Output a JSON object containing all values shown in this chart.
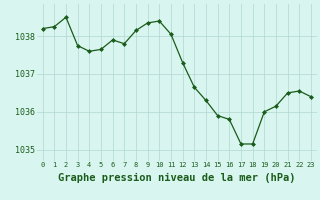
{
  "x": [
    0,
    1,
    2,
    3,
    4,
    5,
    6,
    7,
    8,
    9,
    10,
    11,
    12,
    13,
    14,
    15,
    16,
    17,
    18,
    19,
    20,
    21,
    22,
    23
  ],
  "y": [
    1038.2,
    1038.25,
    1038.5,
    1037.75,
    1037.6,
    1037.65,
    1037.9,
    1037.8,
    1038.15,
    1038.35,
    1038.4,
    1038.05,
    1037.3,
    1036.65,
    1036.3,
    1035.9,
    1035.8,
    1035.15,
    1035.15,
    1036.0,
    1036.15,
    1036.5,
    1036.55,
    1036.4
  ],
  "line_color": "#1a5c1a",
  "marker": "D",
  "marker_size": 2.0,
  "bg_color": "#d8f5f0",
  "grid_color": "#b0d8d0",
  "xlabel": "Graphe pression niveau de la mer (hPa)",
  "tick_color": "#1a5c1a",
  "yticks": [
    1035,
    1036,
    1037,
    1038
  ],
  "ylim": [
    1034.7,
    1038.85
  ],
  "xlim": [
    -0.5,
    23.5
  ],
  "xticks": [
    0,
    1,
    2,
    3,
    4,
    5,
    6,
    7,
    8,
    9,
    10,
    11,
    12,
    13,
    14,
    15,
    16,
    17,
    18,
    19,
    20,
    21,
    22,
    23
  ],
  "xtick_labels": [
    "0",
    "1",
    "2",
    "3",
    "4",
    "5",
    "6",
    "7",
    "8",
    "9",
    "10",
    "11",
    "12",
    "13",
    "14",
    "15",
    "16",
    "17",
    "18",
    "19",
    "20",
    "21",
    "22",
    "23"
  ],
  "xtick_fontsize": 5.0,
  "ytick_fontsize": 6.0,
  "xlabel_fontsize": 7.5
}
